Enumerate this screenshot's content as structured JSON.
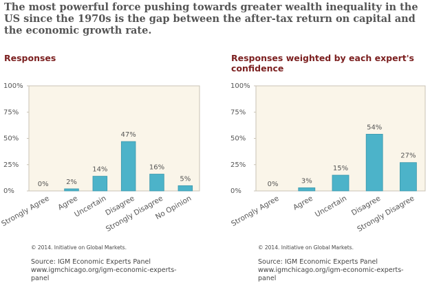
{
  "title": "The most powerful force pushing towards greater wealth inequality in the US since the 1970s is the gap between the after-tax return on capital and the economic growth rate.",
  "chart_data": [
    {
      "type": "bar",
      "title": "Responses",
      "categories": [
        "Strongly Agree",
        "Agree",
        "Uncertain",
        "Disagree",
        "Strongly Disagree",
        "No Opinion"
      ],
      "values": [
        0,
        2,
        14,
        47,
        16,
        5
      ],
      "value_labels": [
        "0%",
        "2%",
        "14%",
        "47%",
        "16%",
        "5%"
      ],
      "color": "#4cb3c9",
      "ylim": [
        0,
        100
      ],
      "yticks": [
        {
          "value": 0,
          "label": "0%"
        },
        {
          "value": 25,
          "label": "25%"
        },
        {
          "value": 50,
          "label": "50%"
        },
        {
          "value": 75,
          "label": "75%"
        },
        {
          "value": 100,
          "label": "100%"
        }
      ],
      "footer": [
        "© 2014. Initiative on Global Markets.",
        "Source: IGM Economic Experts Panel",
        "www.igmchicago.org/igm-economic-experts-panel"
      ]
    },
    {
      "type": "bar",
      "title": "Responses weighted by each expert's confidence",
      "categories": [
        "Strongly Agree",
        "Agree",
        "Uncertain",
        "Disagree",
        "Strongly Disagree"
      ],
      "values": [
        0,
        3,
        15,
        54,
        27
      ],
      "value_labels": [
        "0%",
        "3%",
        "15%",
        "54%",
        "27%"
      ],
      "color": "#4cb3c9",
      "ylim": [
        0,
        100
      ],
      "yticks": [
        {
          "value": 0,
          "label": "0%"
        },
        {
          "value": 25,
          "label": "25%"
        },
        {
          "value": 50,
          "label": "50%"
        },
        {
          "value": 75,
          "label": "75%"
        },
        {
          "value": 100,
          "label": "100%"
        }
      ],
      "footer": [
        "© 2014. Initiative on Global Markets.",
        "Source: IGM Economic Experts Panel",
        "www.igmchicago.org/igm-economic-experts-panel"
      ]
    }
  ]
}
